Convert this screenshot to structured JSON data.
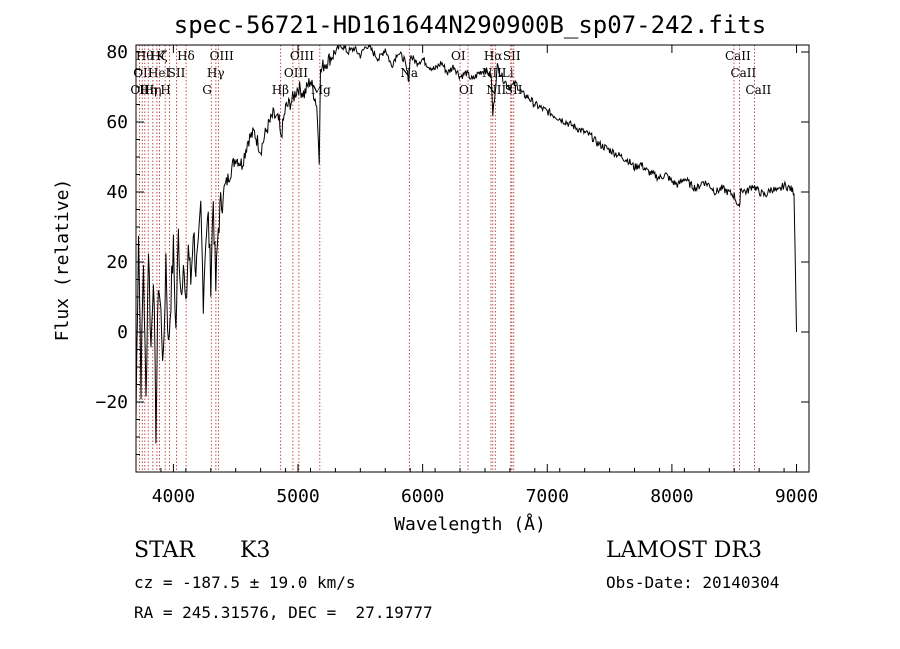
{
  "chart_data": {
    "type": "line",
    "title": "spec-56721-HD161644N290900B_sp07-242.fits",
    "xlabel": "Wavelength (Å)",
    "ylabel": "Flux (relative)",
    "xlim": [
      3700,
      9100
    ],
    "ylim": [
      -40,
      82
    ],
    "xticks": [
      4000,
      5000,
      6000,
      7000,
      8000,
      9000
    ],
    "yticks": [
      -20,
      0,
      20,
      40,
      60,
      80
    ],
    "series": [
      {
        "name": "flux",
        "x": [
          3700,
          3720,
          3740,
          3760,
          3780,
          3800,
          3820,
          3840,
          3860,
          3880,
          3900,
          3920,
          3940,
          3960,
          3980,
          4000,
          4020,
          4040,
          4060,
          4080,
          4100,
          4120,
          4140,
          4160,
          4180,
          4200,
          4220,
          4240,
          4260,
          4280,
          4300,
          4320,
          4340,
          4360,
          4380,
          4400,
          4450,
          4500,
          4550,
          4600,
          4650,
          4700,
          4750,
          4800,
          4850,
          4860,
          4900,
          4950,
          5000,
          5050,
          5100,
          5150,
          5170,
          5180,
          5200,
          5250,
          5300,
          5350,
          5400,
          5450,
          5500,
          5550,
          5600,
          5650,
          5700,
          5750,
          5800,
          5850,
          5890,
          5900,
          5950,
          6000,
          6050,
          6100,
          6150,
          6200,
          6250,
          6300,
          6350,
          6400,
          6450,
          6500,
          6550,
          6563,
          6600,
          6650,
          6700,
          6750,
          6800,
          6850,
          6900,
          6950,
          7000,
          7050,
          7100,
          7150,
          7200,
          7250,
          7300,
          7350,
          7400,
          7450,
          7500,
          7550,
          7600,
          7650,
          7700,
          7750,
          7800,
          7850,
          7900,
          7950,
          8000,
          8050,
          8100,
          8150,
          8200,
          8250,
          8300,
          8350,
          8400,
          8450,
          8500,
          8542,
          8550,
          8600,
          8650,
          8700,
          8750,
          8800,
          8850,
          8900,
          8950,
          8980,
          9000
        ],
        "values": [
          -25,
          30,
          -15,
          20,
          -20,
          25,
          -5,
          18,
          -28,
          15,
          5,
          -10,
          22,
          -5,
          10,
          24,
          0,
          28,
          12,
          20,
          5,
          25,
          14,
          30,
          18,
          22,
          35,
          10,
          28,
          32,
          15,
          38,
          12,
          30,
          36,
          40,
          45,
          50,
          48,
          55,
          57,
          52,
          58,
          62,
          60,
          55,
          64,
          66,
          70,
          68,
          72,
          65,
          50,
          74,
          76,
          78,
          80,
          82,
          80,
          81,
          79,
          82,
          80,
          78,
          81,
          76,
          80,
          78,
          72,
          79,
          77,
          78,
          76,
          75,
          77,
          74,
          76,
          73,
          74,
          72,
          74,
          75,
          73,
          62,
          76,
          72,
          70,
          71,
          68,
          67,
          65,
          64,
          63,
          62,
          61,
          60,
          59,
          58,
          57,
          56,
          54,
          53,
          52,
          51,
          50,
          49,
          47,
          48,
          46,
          45,
          44,
          45,
          43,
          42,
          44,
          42,
          41,
          43,
          42,
          40,
          41,
          40,
          39,
          35,
          41,
          40,
          42,
          40,
          39,
          41,
          40,
          42,
          41,
          40,
          0
        ]
      }
    ],
    "line_markers": [
      {
        "wavelength": 3727,
        "label": "OII",
        "row": 2
      },
      {
        "wavelength": 3750,
        "label": "OII",
        "row": 1
      },
      {
        "wavelength": 3771,
        "label": "Hθ",
        "row": 0
      },
      {
        "wavelength": 3798,
        "label": "Hη",
        "row": 2
      },
      {
        "wavelength": 3835,
        "label": "Hη",
        "row": 2
      },
      {
        "wavelength": 3868,
        "label": "HeI",
        "row": 1
      },
      {
        "wavelength": 3889,
        "label": "Hζ",
        "row": 0
      },
      {
        "wavelength": 3934,
        "label": "K",
        "row": 0
      },
      {
        "wavelength": 3968,
        "label": "H",
        "row": 2
      },
      {
        "wavelength": 4026,
        "label": "SII",
        "row": 1
      },
      {
        "wavelength": 4102,
        "label": "Hδ",
        "row": 0
      },
      {
        "wavelength": 4304,
        "label": "G",
        "row": 2
      },
      {
        "wavelength": 4341,
        "label": "Hγ",
        "row": 1
      },
      {
        "wavelength": 4363,
        "label": "OIII",
        "row": 0
      },
      {
        "wavelength": 4861,
        "label": "Hβ",
        "row": 2
      },
      {
        "wavelength": 4959,
        "label": "OIII",
        "row": 1
      },
      {
        "wavelength": 5007,
        "label": "OIII",
        "row": 0
      },
      {
        "wavelength": 5175,
        "label": "Mg",
        "row": 2
      },
      {
        "wavelength": 5893,
        "label": "Na",
        "row": 1
      },
      {
        "wavelength": 6300,
        "label": "OI",
        "row": 0
      },
      {
        "wavelength": 6364,
        "label": "OI",
        "row": 2
      },
      {
        "wavelength": 6548,
        "label": "NII",
        "row": 1
      },
      {
        "wavelength": 6563,
        "label": "Hα",
        "row": 0
      },
      {
        "wavelength": 6583,
        "label": "NII",
        "row": 2
      },
      {
        "wavelength": 6707,
        "label": "Li",
        "row": 1
      },
      {
        "wavelength": 6716,
        "label": "SII",
        "row": 0
      },
      {
        "wavelength": 6731,
        "label": "SII",
        "row": 2
      },
      {
        "wavelength": 8498,
        "label": "CaII",
        "row": 0
      },
      {
        "wavelength": 8542,
        "label": "CaII",
        "row": 1
      },
      {
        "wavelength": 8662,
        "label": "CaII",
        "row": 2
      }
    ],
    "marker_color": "#b22222"
  },
  "info": {
    "class": "STAR",
    "subclass": "K3",
    "survey": "LAMOST DR3",
    "cz": "cz = -187.5 ± 19.0 km/s",
    "obs_date": "Obs-Date: 20140304",
    "radec": "RA = 245.31576, DEC =  27.19777"
  }
}
